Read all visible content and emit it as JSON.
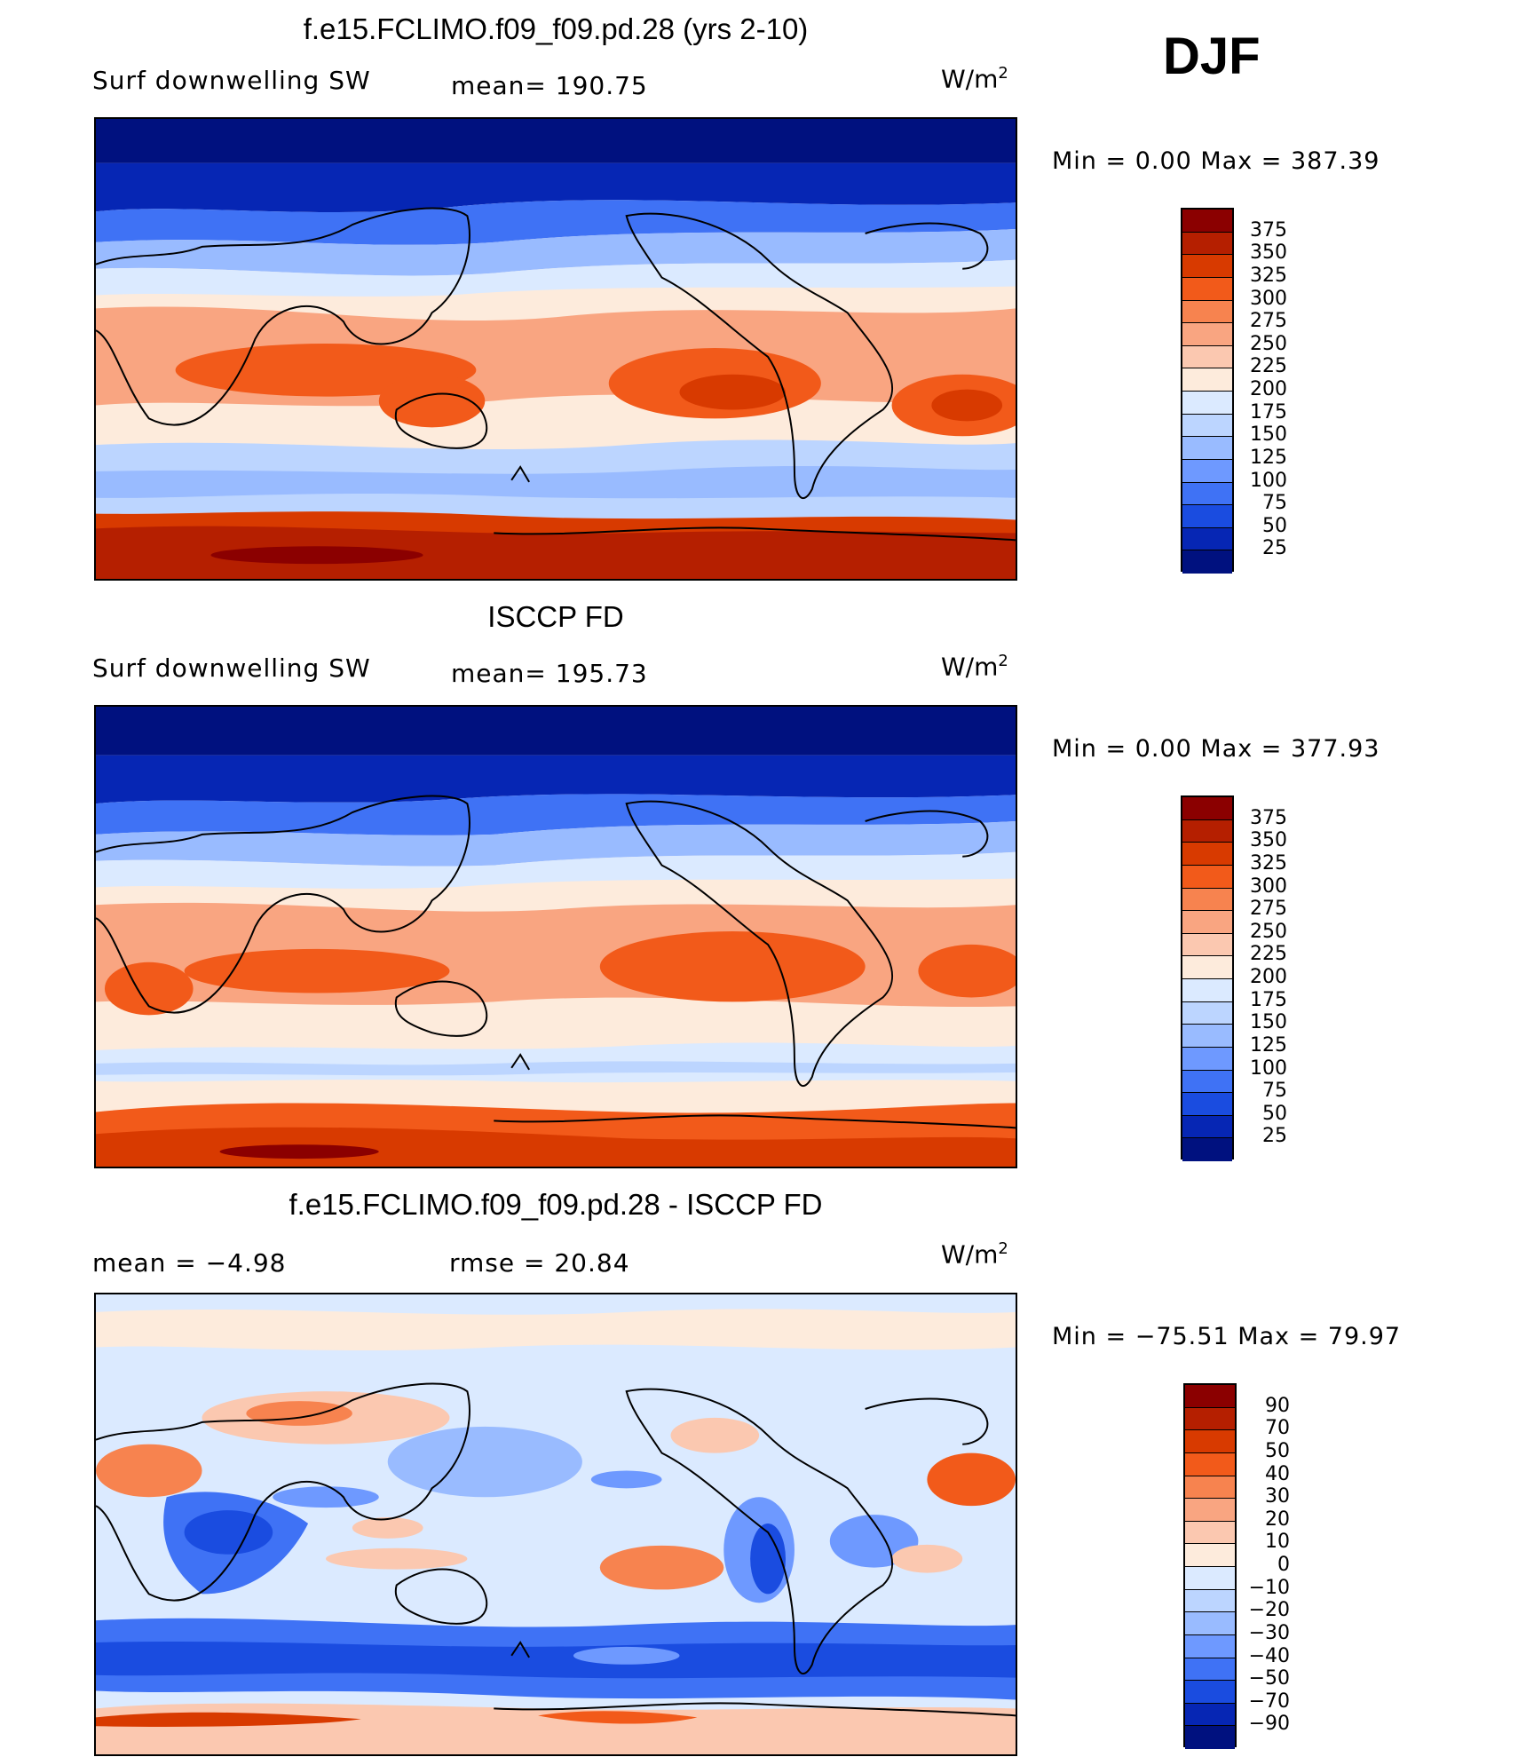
{
  "season": "DJF",
  "panels": [
    {
      "title": "f.e15.FCLIMO.f09_f09.pd.28 (yrs 2-10)",
      "left_label": "Surf  downwelling SW",
      "center_label": "mean=  190.75",
      "units": "W/m",
      "units_sup": "2",
      "minmax": "Min  =     0.00  Max  =  387.39",
      "levels": [
        "375",
        "350",
        "325",
        "300",
        "275",
        "250",
        "225",
        "200",
        "175",
        "150",
        "125",
        "100",
        "75",
        "50",
        "25"
      ],
      "colors": [
        "#8b0000",
        "#b51f00",
        "#d83a00",
        "#f25a1a",
        "#f7834f",
        "#f9a581",
        "#fbc8b0",
        "#fdebdc",
        "#dbeaff",
        "#bcd5ff",
        "#99bbff",
        "#6e99ff",
        "#3f72f5",
        "#1a4ce0",
        "#0626b4",
        "#00117f"
      ]
    },
    {
      "title": "ISCCP FD",
      "left_label": "Surf  downwelling SW",
      "center_label": "mean=  195.73",
      "units": "W/m",
      "units_sup": "2",
      "minmax": "Min  =     0.00  Max  =  377.93",
      "levels": [
        "375",
        "350",
        "325",
        "300",
        "275",
        "250",
        "225",
        "200",
        "175",
        "150",
        "125",
        "100",
        "75",
        "50",
        "25"
      ],
      "colors": [
        "#8b0000",
        "#b51f00",
        "#d83a00",
        "#f25a1a",
        "#f7834f",
        "#f9a581",
        "#fbc8b0",
        "#fdebdc",
        "#dbeaff",
        "#bcd5ff",
        "#99bbff",
        "#6e99ff",
        "#3f72f5",
        "#1a4ce0",
        "#0626b4",
        "#00117f"
      ]
    },
    {
      "title": "f.e15.FCLIMO.f09_f09.pd.28 - ISCCP FD",
      "left_label": "mean  =    −4.98",
      "center_label": "rmse  =    20.84",
      "units": "W/m",
      "units_sup": "2",
      "minmax": "Min  = −75.51  Max  =   79.97",
      "levels": [
        "90",
        "70",
        "50",
        "40",
        "30",
        "20",
        "10",
        "0",
        "−10",
        "−20",
        "−30",
        "−40",
        "−50",
        "−70",
        "−90"
      ],
      "colors": [
        "#8b0000",
        "#b51f00",
        "#d83a00",
        "#f25a1a",
        "#f7834f",
        "#f9a581",
        "#fbc8b0",
        "#fdebdc",
        "#dbeaff",
        "#bcd5ff",
        "#99bbff",
        "#6e99ff",
        "#3f72f5",
        "#1a4ce0",
        "#0626b4",
        "#00117f"
      ]
    }
  ]
}
